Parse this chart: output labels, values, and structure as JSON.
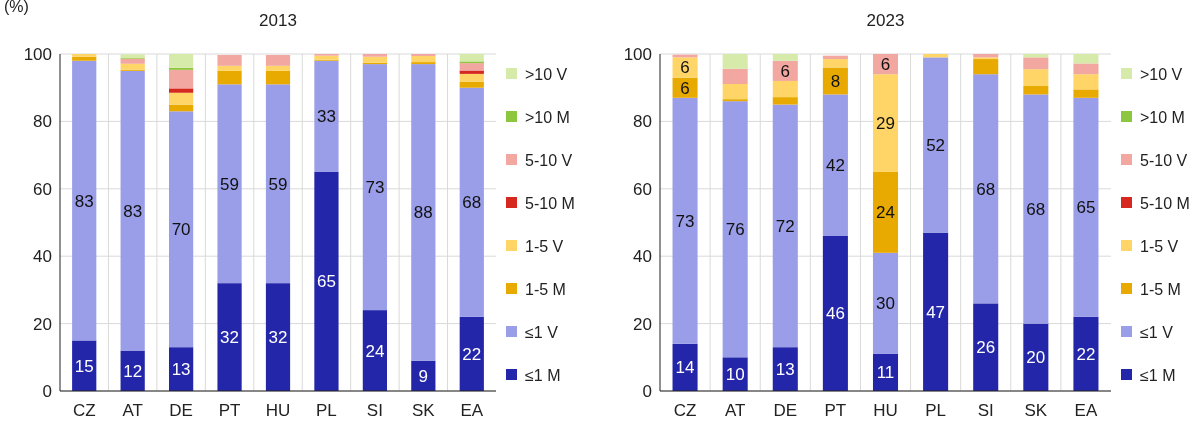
{
  "chart_data": [
    {
      "type": "bar",
      "title": "2013",
      "annotations": [
        "(%)"
      ],
      "stacked": true,
      "grid": true,
      "legend": "right",
      "categories": [
        "CZ",
        "AT",
        "DE",
        "PT",
        "HU",
        "PL",
        "SI",
        "SK",
        "EA"
      ],
      "ylim": [
        0,
        100
      ],
      "yticks": [
        0,
        20,
        40,
        60,
        80,
        100
      ],
      "series": [
        {
          "name": "≤1 M",
          "color": "#2326a8",
          "values": [
            15,
            12,
            13,
            32,
            32,
            65,
            24,
            9,
            22
          ],
          "value_labels": [
            "15",
            "12",
            "13",
            "32",
            "32",
            "65",
            "24",
            "9",
            "22"
          ]
        },
        {
          "name": "≤1 V",
          "color": "#9a9de8",
          "values": [
            83,
            83,
            70,
            59,
            59,
            33,
            73,
            88,
            68
          ],
          "value_labels": [
            "83",
            "83",
            "70",
            "59",
            "59",
            "33",
            "73",
            "88",
            "68"
          ]
        },
        {
          "name": "1-5 M",
          "color": "#e8aa00",
          "values": [
            1.2,
            0.3,
            2,
            4,
            4,
            0.3,
            0.4,
            0.6,
            1.8
          ]
        },
        {
          "name": "1-5 V",
          "color": "#fed566",
          "values": [
            0.8,
            1.8,
            3.5,
            1.5,
            1.5,
            1.2,
            1.8,
            1.8,
            2.3
          ]
        },
        {
          "name": "5-10 M",
          "color": "#d6281f",
          "values": [
            0,
            0,
            1.3,
            0,
            0,
            0,
            0,
            0,
            1
          ]
        },
        {
          "name": "5-10 V",
          "color": "#f2a7a0",
          "values": [
            0,
            1.5,
            5.5,
            3.2,
            3.2,
            0.5,
            0.8,
            0.6,
            2.2
          ]
        },
        {
          "name": ">10 M",
          "color": "#8dc63f",
          "values": [
            0,
            0.2,
            0.6,
            0,
            0,
            0,
            0,
            0,
            0.5
          ]
        },
        {
          "name": ">10 V",
          "color": "#d6ebaa",
          "values": [
            0,
            1.1,
            4.1,
            null,
            null,
            0,
            0,
            0,
            2.2
          ]
        }
      ]
    },
    {
      "type": "bar",
      "title": "2023",
      "stacked": true,
      "grid": true,
      "legend": "right",
      "categories": [
        "CZ",
        "AT",
        "DE",
        "PT",
        "HU",
        "PL",
        "SI",
        "SK",
        "EA"
      ],
      "ylim": [
        0,
        100
      ],
      "yticks": [
        0,
        20,
        40,
        60,
        80,
        100
      ],
      "series": [
        {
          "name": "≤1 M",
          "color": "#2326a8",
          "values": [
            14,
            10,
            13,
            46,
            11,
            47,
            26,
            20,
            22
          ],
          "value_labels": [
            "14",
            "10",
            "13",
            "46",
            "11",
            "47",
            "26",
            "20",
            "22"
          ]
        },
        {
          "name": "≤1 V",
          "color": "#9a9de8",
          "values": [
            73,
            76,
            72,
            42,
            30,
            52,
            68,
            68,
            65
          ],
          "value_labels": [
            "73",
            "76",
            "72",
            "42",
            "30",
            "52",
            "68",
            "68",
            "65"
          ]
        },
        {
          "name": "1-5 M",
          "color": "#e8aa00",
          "values": [
            6,
            0.6,
            2.2,
            8,
            24,
            0,
            4.5,
            2.5,
            2.5
          ],
          "value_labels": [
            "6",
            null,
            null,
            "8",
            "24",
            null,
            null,
            null,
            null
          ]
        },
        {
          "name": "1-5 V",
          "color": "#fed566",
          "values": [
            6,
            4.5,
            4.8,
            2.5,
            29,
            1,
            0.5,
            5,
            4.5
          ],
          "value_labels": [
            "6",
            null,
            null,
            null,
            "29",
            null,
            null,
            null,
            null
          ]
        },
        {
          "name": "5-10 M",
          "color": "#d6281f",
          "values": [
            0,
            0,
            0,
            0,
            0,
            0,
            0,
            0,
            0
          ]
        },
        {
          "name": "5-10 V",
          "color": "#f2a7a0",
          "values": [
            0.8,
            4.5,
            6,
            1,
            6,
            0,
            1,
            3.5,
            3.2
          ],
          "value_labels": [
            null,
            null,
            "6",
            null,
            "6",
            null,
            null,
            null,
            null
          ]
        },
        {
          "name": ">10 M",
          "color": "#8dc63f",
          "values": [
            0,
            0,
            0,
            0,
            0,
            0,
            0,
            0,
            0
          ]
        },
        {
          "name": ">10 V",
          "color": "#d6ebaa",
          "values": [
            null,
            4.4,
            2,
            null,
            0,
            0,
            0,
            1,
            2.8
          ]
        }
      ]
    }
  ]
}
